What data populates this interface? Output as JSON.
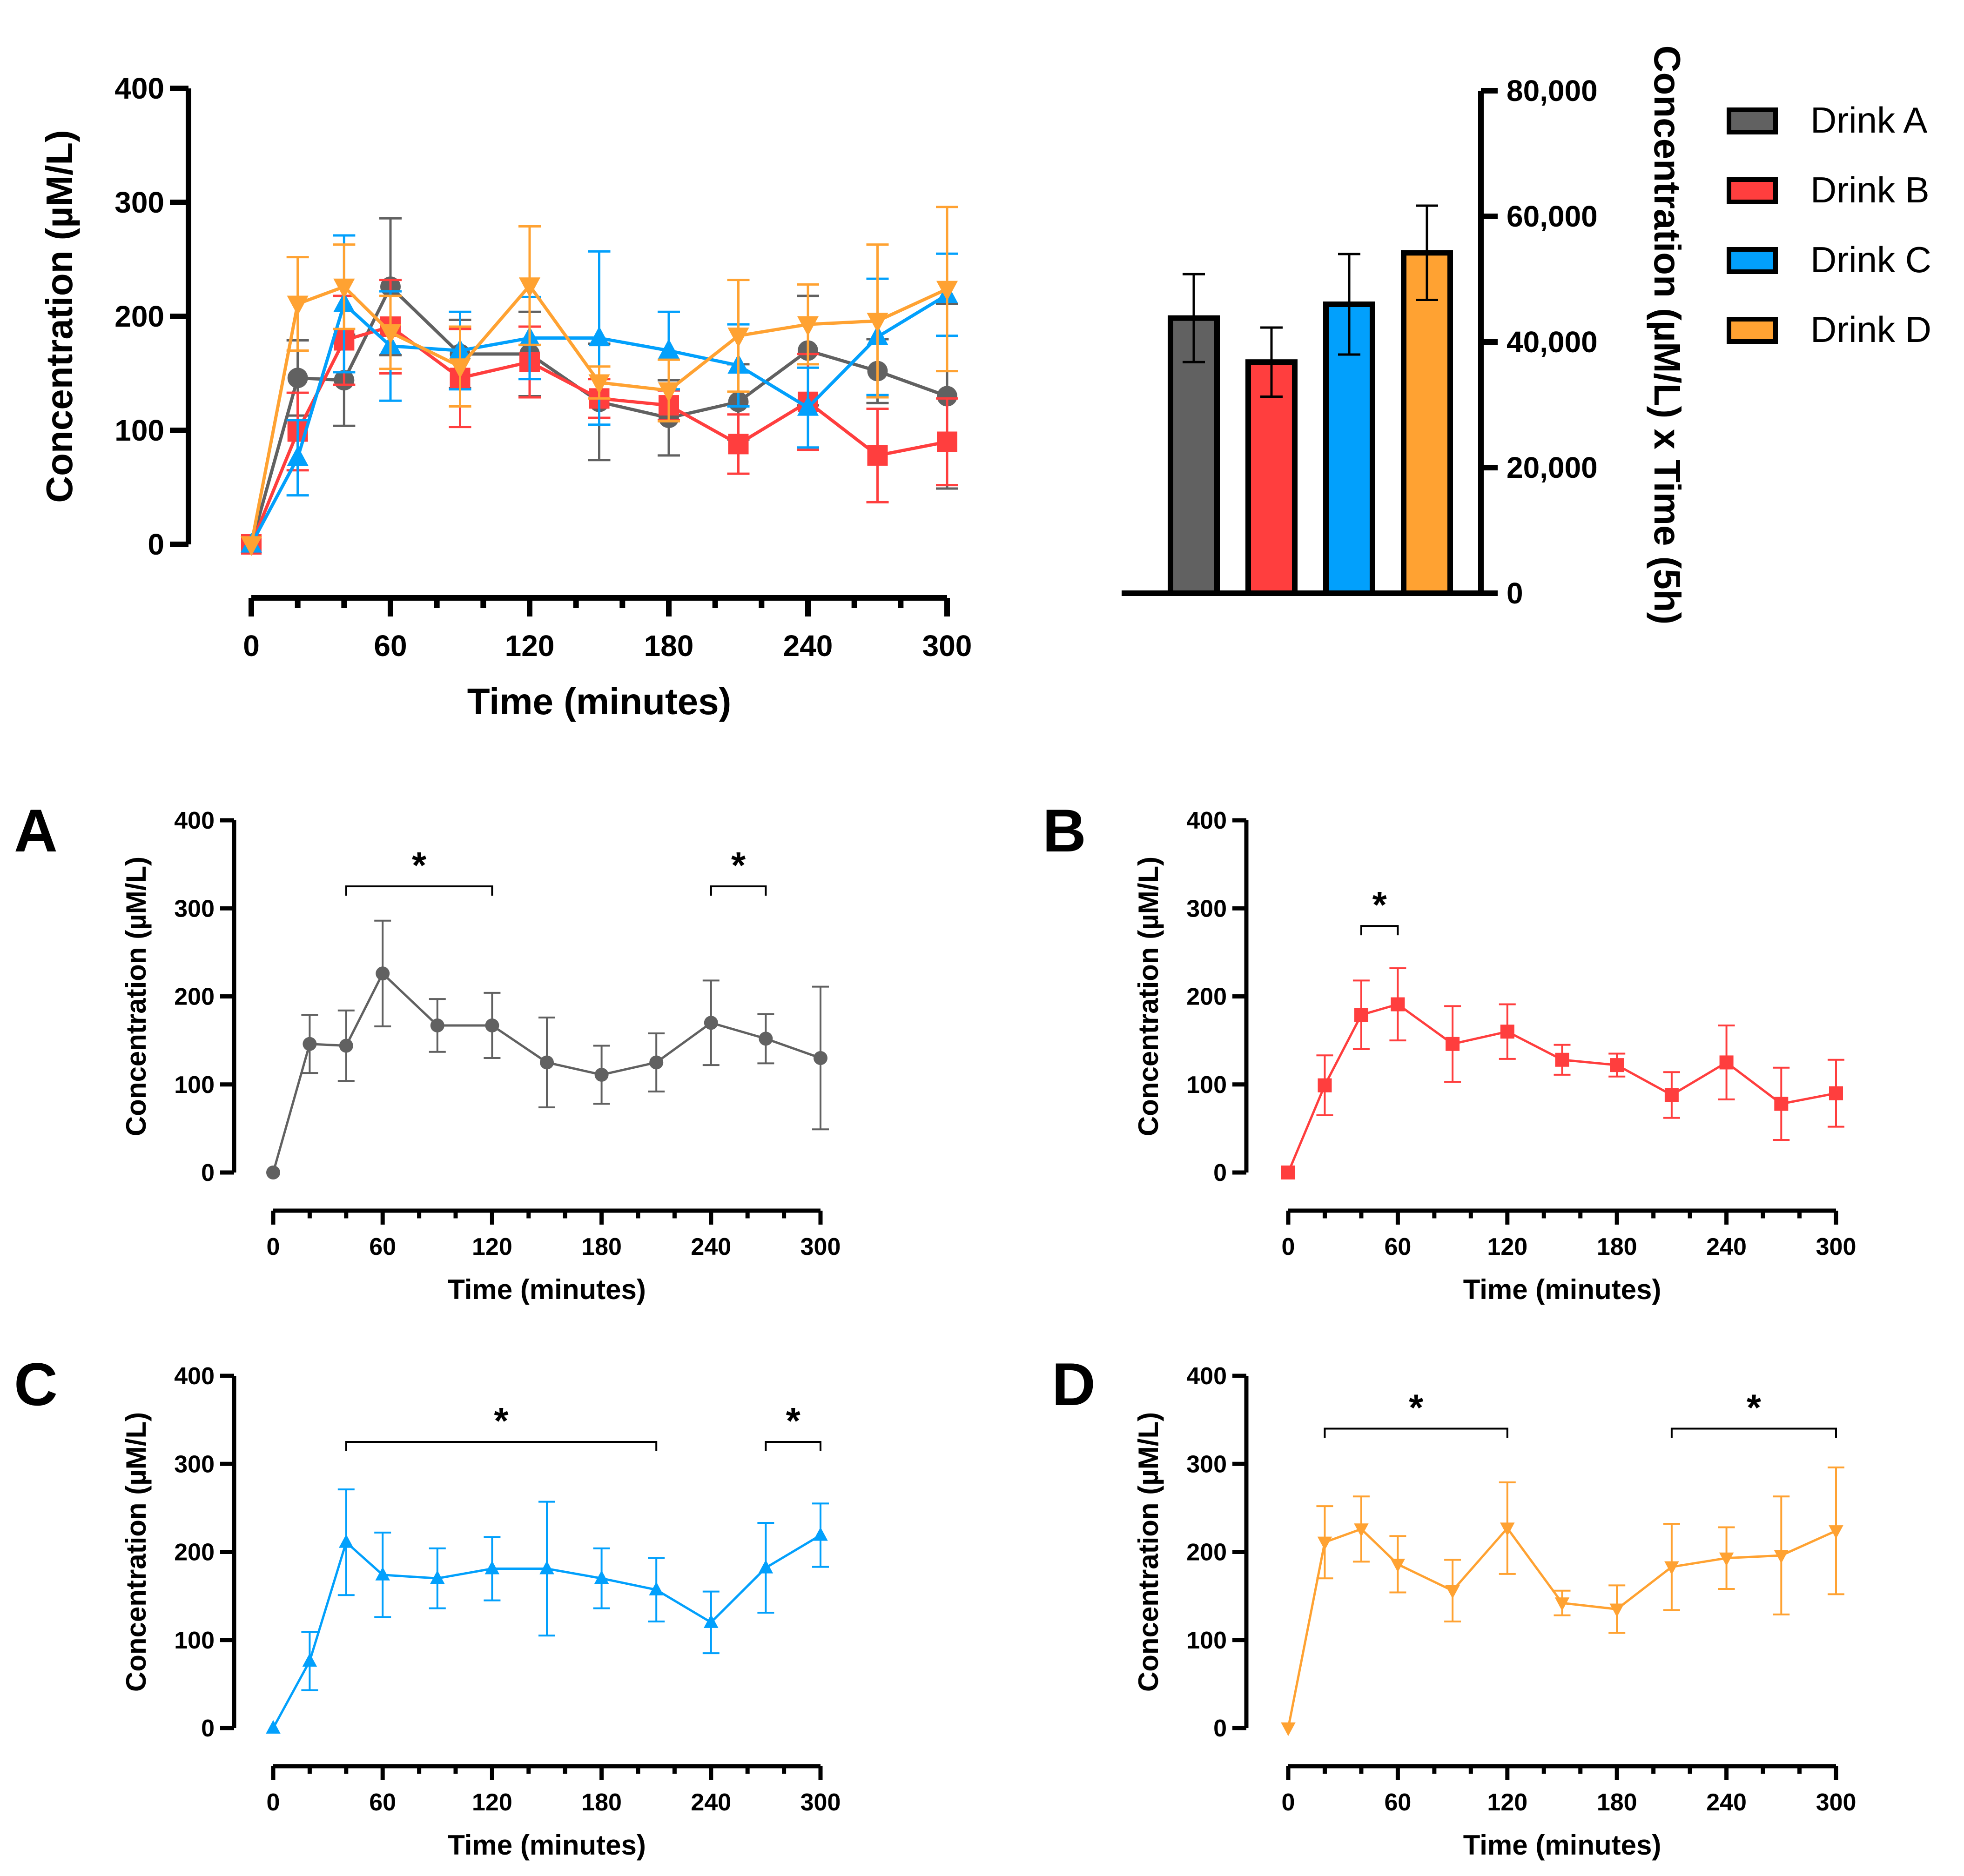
{
  "figure": {
    "panel_letters": [
      "A",
      "B",
      "C",
      "D"
    ]
  },
  "legend": {
    "items": [
      {
        "label": "Drink A",
        "color": "#616161"
      },
      {
        "label": "Drink B",
        "color": "#FF3E3E"
      },
      {
        "label": "Drink C",
        "color": "#02A0FC"
      },
      {
        "label": "Drink D",
        "color": "#FFA232"
      }
    ]
  },
  "chart_data": [
    {
      "id": "combined",
      "type": "line",
      "title": "",
      "xlabel": "Time (minutes)",
      "ylabel": "Concentration (µM/L)",
      "xlim": [
        0,
        300
      ],
      "ylim": [
        0,
        400
      ],
      "xticks": [
        0,
        60,
        120,
        180,
        240,
        300
      ],
      "xminor_step": 20,
      "yticks": [
        0,
        100,
        200,
        300,
        400
      ],
      "grid": false,
      "x": [
        0,
        20,
        40,
        60,
        90,
        120,
        150,
        180,
        210,
        240,
        270,
        300
      ],
      "series": [
        {
          "name": "Drink A",
          "color": "#616161",
          "marker": "circle",
          "values": [
            0,
            146,
            144,
            226,
            167,
            167,
            125,
            111,
            125,
            170,
            152,
            130
          ],
          "error": [
            0,
            33,
            40,
            60,
            30,
            37,
            51,
            33,
            33,
            48,
            28,
            81
          ]
        },
        {
          "name": "Drink B",
          "color": "#FF3E3E",
          "marker": "square",
          "values": [
            0,
            99,
            179,
            191,
            146,
            160,
            128,
            122,
            88,
            125,
            78,
            90
          ],
          "error": [
            0,
            34,
            39,
            41,
            43,
            31,
            17,
            13,
            26,
            42,
            41,
            38
          ]
        },
        {
          "name": "Drink C",
          "color": "#02A0FC",
          "marker": "triangle-up",
          "values": [
            0,
            76,
            211,
            174,
            170,
            181,
            181,
            170,
            157,
            120,
            182,
            219
          ],
          "error": [
            0,
            33,
            60,
            48,
            34,
            36,
            76,
            34,
            36,
            35,
            51,
            36
          ]
        },
        {
          "name": "Drink D",
          "color": "#FFA232",
          "marker": "triangle-down",
          "values": [
            0,
            211,
            226,
            186,
            156,
            227,
            142,
            135,
            183,
            193,
            196,
            224
          ],
          "error": [
            0,
            41,
            37,
            32,
            35,
            52,
            14,
            27,
            49,
            35,
            67,
            72
          ]
        }
      ]
    },
    {
      "id": "auc",
      "type": "bar",
      "title": "",
      "xlabel": "",
      "ylabel": "Concentration (µM/L) x Time (5h)",
      "categories": [
        "Drink A",
        "Drink B",
        "Drink C",
        "Drink D"
      ],
      "values": [
        43800,
        36800,
        46000,
        54200
      ],
      "error": [
        7000,
        5500,
        8000,
        7500
      ],
      "colors": [
        "#616161",
        "#FF3E3E",
        "#02A0FC",
        "#FFA232"
      ],
      "ylim": [
        0,
        80000
      ],
      "yticks": [
        0,
        20000,
        40000,
        60000,
        80000
      ],
      "ytick_labels": [
        "0",
        "20,000",
        "40,000",
        "60,000",
        "80,000"
      ],
      "y_axis_side": "right",
      "legend_position": "right"
    },
    {
      "id": "panelA",
      "panel": "A",
      "type": "line",
      "xlabel": "Time (minutes)",
      "ylabel": "Concentration (µM/L)",
      "xlim": [
        0,
        300
      ],
      "ylim": [
        0,
        400
      ],
      "xticks": [
        0,
        60,
        120,
        180,
        240,
        300
      ],
      "yticks": [
        0,
        100,
        200,
        300,
        400
      ],
      "x": [
        0,
        20,
        40,
        60,
        90,
        120,
        150,
        180,
        210,
        240,
        270,
        300
      ],
      "series": [
        {
          "name": "Drink A",
          "color": "#616161",
          "marker": "circle",
          "values": [
            0,
            146,
            144,
            226,
            167,
            167,
            125,
            111,
            125,
            170,
            152,
            130
          ],
          "error": [
            0,
            33,
            40,
            60,
            30,
            37,
            51,
            33,
            33,
            48,
            28,
            81
          ]
        }
      ],
      "annotations": [
        {
          "text": "*",
          "x_start": 40,
          "x_end": 120,
          "y": 325
        },
        {
          "text": "*",
          "x_start": 240,
          "x_end": 270,
          "y": 325
        }
      ]
    },
    {
      "id": "panelB",
      "panel": "B",
      "type": "line",
      "xlabel": "Time (minutes)",
      "ylabel": "Concentration (µM/L)",
      "xlim": [
        0,
        300
      ],
      "ylim": [
        0,
        400
      ],
      "xticks": [
        0,
        60,
        120,
        180,
        240,
        300
      ],
      "yticks": [
        0,
        100,
        200,
        300,
        400
      ],
      "x": [
        0,
        20,
        40,
        60,
        90,
        120,
        150,
        180,
        210,
        240,
        270,
        300
      ],
      "series": [
        {
          "name": "Drink B",
          "color": "#FF3E3E",
          "marker": "square",
          "values": [
            0,
            99,
            179,
            191,
            146,
            160,
            128,
            122,
            88,
            125,
            78,
            90
          ],
          "error": [
            0,
            34,
            39,
            41,
            43,
            31,
            17,
            13,
            26,
            42,
            41,
            38
          ]
        }
      ],
      "annotations": [
        {
          "text": "*",
          "x_start": 40,
          "x_end": 60,
          "y": 280
        }
      ]
    },
    {
      "id": "panelC",
      "panel": "C",
      "type": "line",
      "xlabel": "Time (minutes)",
      "ylabel": "Concentration (µM/L)",
      "xlim": [
        0,
        300
      ],
      "ylim": [
        0,
        400
      ],
      "xticks": [
        0,
        60,
        120,
        180,
        240,
        300
      ],
      "yticks": [
        0,
        100,
        200,
        300,
        400
      ],
      "x": [
        0,
        20,
        40,
        60,
        90,
        120,
        150,
        180,
        210,
        240,
        270,
        300
      ],
      "series": [
        {
          "name": "Drink C",
          "color": "#02A0FC",
          "marker": "triangle-up",
          "values": [
            0,
            76,
            211,
            174,
            170,
            181,
            181,
            170,
            157,
            120,
            182,
            219
          ],
          "error": [
            0,
            33,
            60,
            48,
            34,
            36,
            76,
            34,
            36,
            35,
            51,
            36
          ]
        }
      ],
      "annotations": [
        {
          "text": "*",
          "x_start": 40,
          "x_end": 210,
          "y": 325
        },
        {
          "text": "*",
          "x_start": 270,
          "x_end": 300,
          "y": 325
        }
      ]
    },
    {
      "id": "panelD",
      "panel": "D",
      "type": "line",
      "xlabel": "Time (minutes)",
      "ylabel": "Concentration (µM/L)",
      "xlim": [
        0,
        300
      ],
      "ylim": [
        0,
        400
      ],
      "xticks": [
        0,
        60,
        120,
        180,
        240,
        300
      ],
      "yticks": [
        0,
        100,
        200,
        300,
        400
      ],
      "x": [
        0,
        20,
        40,
        60,
        90,
        120,
        150,
        180,
        210,
        240,
        270,
        300
      ],
      "series": [
        {
          "name": "Drink D",
          "color": "#FFA232",
          "marker": "triangle-down",
          "values": [
            0,
            211,
            226,
            186,
            156,
            227,
            142,
            135,
            183,
            193,
            196,
            224
          ],
          "error": [
            0,
            41,
            37,
            32,
            35,
            52,
            14,
            27,
            49,
            35,
            67,
            72
          ]
        }
      ],
      "annotations": [
        {
          "text": "*",
          "x_start": 20,
          "x_end": 120,
          "y": 340
        },
        {
          "text": "*",
          "x_start": 210,
          "x_end": 300,
          "y": 340
        }
      ]
    }
  ]
}
